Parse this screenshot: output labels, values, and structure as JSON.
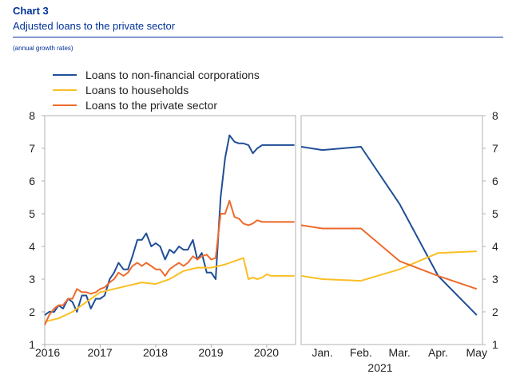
{
  "header": {
    "chart_label": "Chart 3",
    "title": "Adjusted loans to the private sector",
    "subtitle": "(annual growth rates)"
  },
  "colors": {
    "nfc": "#1f4e96",
    "households": "#fbbf24",
    "private": "#ee6a2c",
    "axis": "#b0b0b0",
    "text": "#222222"
  },
  "chart_data": {
    "type": "line",
    "title": "Adjusted loans to the private sector",
    "legend": "top-left",
    "grid": false,
    "ylim": [
      1,
      8
    ],
    "yticks": [
      "1",
      "2",
      "3",
      "4",
      "5",
      "6",
      "7",
      "8"
    ],
    "left_panel": {
      "xlim": [
        2016.0,
        2020.52
      ],
      "xtick_values": [
        2016,
        2017,
        2018,
        2019,
        2020
      ],
      "xtick_labels": [
        "2016",
        "2017",
        "2018",
        "2019",
        "2020"
      ],
      "series": [
        {
          "name": "Loans to non-financial corporations",
          "color_key": "nfc",
          "x": [
            2016.0,
            2016.08,
            2016.17,
            2016.25,
            2016.33,
            2016.42,
            2016.5,
            2016.58,
            2016.67,
            2016.75,
            2016.83,
            2016.92,
            2017.0,
            2017.08,
            2017.17,
            2017.25,
            2017.33,
            2017.42,
            2017.5,
            2017.58,
            2017.67,
            2017.75,
            2017.83,
            2017.92,
            2018.0,
            2018.08,
            2018.17,
            2018.25,
            2018.33,
            2018.42,
            2018.5,
            2018.58,
            2018.67,
            2018.75,
            2018.83,
            2018.92,
            2019.0,
            2019.08,
            2019.17,
            2019.25,
            2019.33,
            2019.42,
            2019.5,
            2019.58,
            2019.67,
            2019.75,
            2019.83,
            2019.92,
            2020.0,
            2020.08,
            2020.17,
            2020.25,
            2020.33,
            2020.42,
            2020.5
          ],
          "y": [
            1.9,
            2.0,
            2.0,
            2.2,
            2.1,
            2.4,
            2.3,
            2.0,
            2.5,
            2.5,
            2.1,
            2.4,
            2.4,
            2.5,
            3.0,
            3.2,
            3.5,
            3.3,
            3.3,
            3.7,
            4.2,
            4.2,
            4.4,
            4.0,
            4.1,
            4.0,
            3.6,
            3.9,
            3.8,
            4.0,
            3.9,
            3.9,
            4.2,
            3.6,
            3.8,
            3.2,
            3.2,
            3.0,
            5.5,
            6.7,
            7.4,
            7.2,
            7.15,
            7.15,
            7.1,
            6.85,
            7.0,
            7.1,
            7.1,
            7.1,
            7.1,
            7.1,
            7.1,
            7.1,
            7.1
          ],
          "note": ""
        },
        {
          "name": "Loans to households",
          "color_key": "households",
          "x": [
            2016.0,
            2016.25,
            2016.5,
            2016.75,
            2017.0,
            2017.25,
            2017.5,
            2017.75,
            2018.0,
            2018.25,
            2018.5,
            2018.75,
            2019.0,
            2019.25,
            2019.5,
            2019.58,
            2019.67,
            2019.75,
            2019.83,
            2019.92,
            2020.0,
            2020.08,
            2020.17,
            2020.25,
            2020.33,
            2020.42,
            2020.5
          ],
          "y": [
            1.7,
            1.8,
            2.0,
            2.3,
            2.6,
            2.7,
            2.8,
            2.9,
            2.85,
            3.0,
            3.25,
            3.35,
            3.35,
            3.45,
            3.6,
            3.65,
            3.0,
            3.05,
            3.0,
            3.05,
            3.15,
            3.1,
            3.1,
            3.1,
            3.1,
            3.1,
            3.1
          ]
        },
        {
          "name": "Loans to the private sector",
          "color_key": "private",
          "x": [
            2016.0,
            2016.08,
            2016.17,
            2016.25,
            2016.33,
            2016.42,
            2016.5,
            2016.58,
            2016.67,
            2016.75,
            2016.83,
            2016.92,
            2017.0,
            2017.08,
            2017.17,
            2017.25,
            2017.33,
            2017.42,
            2017.5,
            2017.58,
            2017.67,
            2017.75,
            2017.83,
            2017.92,
            2018.0,
            2018.08,
            2018.17,
            2018.25,
            2018.33,
            2018.42,
            2018.5,
            2018.58,
            2018.67,
            2018.75,
            2018.83,
            2018.92,
            2019.0,
            2019.08,
            2019.17,
            2019.25,
            2019.33,
            2019.42,
            2019.5,
            2019.58,
            2019.67,
            2019.75,
            2019.83,
            2019.92,
            2020.0,
            2020.08,
            2020.17,
            2020.25,
            2020.33,
            2020.42,
            2020.5
          ],
          "y": [
            1.6,
            1.9,
            2.1,
            2.2,
            2.2,
            2.4,
            2.4,
            2.7,
            2.6,
            2.6,
            2.55,
            2.6,
            2.7,
            2.75,
            2.9,
            3.0,
            3.2,
            3.1,
            3.2,
            3.4,
            3.5,
            3.4,
            3.5,
            3.4,
            3.3,
            3.3,
            3.1,
            3.3,
            3.4,
            3.5,
            3.4,
            3.5,
            3.7,
            3.6,
            3.7,
            3.75,
            3.6,
            3.65,
            5.0,
            5.0,
            5.4,
            4.9,
            4.85,
            4.7,
            4.65,
            4.7,
            4.8,
            4.75,
            4.75,
            4.75,
            4.75,
            4.75,
            4.75,
            4.75,
            4.75
          ]
        }
      ]
    },
    "right_panel": {
      "x_categories": [
        "Jan.",
        "Feb.",
        "Mar.",
        "Apr.",
        "May"
      ],
      "x_sublabel": "2021",
      "xlim": [
        0.45,
        5.15
      ],
      "series": [
        {
          "name": "Loans to non-financial corporations",
          "color_key": "nfc",
          "x": [
            0.45,
            1,
            2,
            3,
            4,
            5
          ],
          "y": [
            7.05,
            6.95,
            7.05,
            5.3,
            3.1,
            1.9
          ]
        },
        {
          "name": "Loans to households",
          "color_key": "households",
          "x": [
            0.45,
            1,
            2,
            3,
            4,
            5
          ],
          "y": [
            3.1,
            3.0,
            2.95,
            3.3,
            3.8,
            3.85
          ]
        },
        {
          "name": "Loans to the private sector",
          "color_key": "private",
          "x": [
            0.45,
            1,
            2,
            3,
            4,
            5
          ],
          "y": [
            4.65,
            4.55,
            4.55,
            3.55,
            3.1,
            2.7
          ]
        }
      ]
    }
  }
}
